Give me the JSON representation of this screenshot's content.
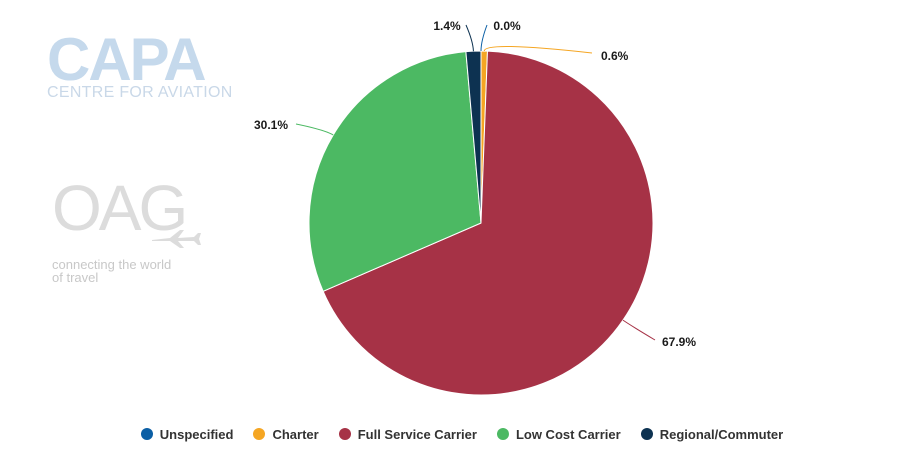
{
  "logos": {
    "capa_word": "CAPA",
    "capa_subtitle": "CENTRE FOR AVIATION",
    "oag_word": "OAG",
    "oag_tagline": "connecting the world of travel"
  },
  "colors": {
    "Unspecified": "#0b5fa5",
    "Charter": "#f5a623",
    "Full Service Carrier": "#a63246",
    "Low Cost Carrier": "#4cb963",
    "Regional/Commuter": "#0d3251"
  },
  "chart_data": {
    "type": "pie",
    "title": "",
    "legend_position": "bottom",
    "slices": [
      {
        "name": "Unspecified",
        "value": 0.0,
        "label": "0.0%"
      },
      {
        "name": "Charter",
        "value": 0.6,
        "label": "0.6%"
      },
      {
        "name": "Full Service Carrier",
        "value": 67.9,
        "label": "67.9%"
      },
      {
        "name": "Low Cost Carrier",
        "value": 30.1,
        "label": "30.1%"
      },
      {
        "name": "Regional/Commuter",
        "value": 1.4,
        "label": "1.4%"
      }
    ],
    "legend": [
      "Unspecified",
      "Charter",
      "Full Service Carrier",
      "Low Cost Carrier",
      "Regional/Commuter"
    ]
  }
}
